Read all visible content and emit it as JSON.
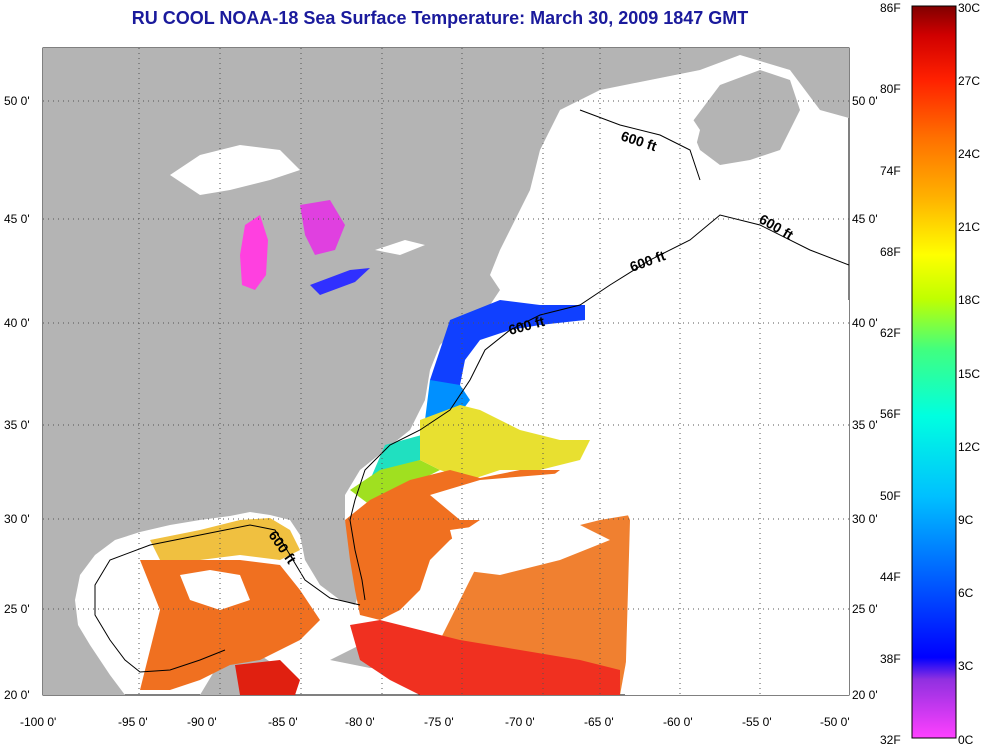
{
  "title": "RU COOL  NOAA-18  Sea Surface Temperature:  March 30, 2009 1847 GMT",
  "map": {
    "lon_range": [
      -100,
      -50
    ],
    "lat_range": [
      20,
      52
    ],
    "lon_ticks": [
      "-100 0'",
      "-95 0'",
      "-90 0'",
      "-85 0'",
      "-80 0'",
      "-75 0'",
      "-70 0'",
      "-65 0'",
      "-60 0'",
      "-55 0'",
      "-50 0'"
    ],
    "lat_ticks": [
      "50 0'",
      "45 0'",
      "40 0'",
      "35 0'",
      "30 0'",
      "25 0'",
      "20 0'"
    ],
    "contour_labels": [
      "600 ft",
      "600 ft",
      "600 ft",
      "600 ft",
      "600 ft"
    ],
    "colors": {
      "land": "#b4b4b4",
      "ocean_cloud": "#ffffff"
    }
  },
  "colorbar": {
    "fahrenheit_labels": [
      "86F",
      "80F",
      "74F",
      "68F",
      "62F",
      "56F",
      "50F",
      "44F",
      "38F",
      "32F"
    ],
    "celsius_labels": [
      "30C",
      "27C",
      "24C",
      "21C",
      "18C",
      "15C",
      "12C",
      "9C",
      "6C",
      "3C",
      "0C"
    ],
    "stops": [
      "#ff40ff",
      "#9030e0",
      "#0000ff",
      "#0060ff",
      "#00c0ff",
      "#00ffe0",
      "#40ff80",
      "#c0ff00",
      "#ffff00",
      "#ffb000",
      "#ff7000",
      "#ff2000",
      "#d00000",
      "#800000"
    ]
  }
}
